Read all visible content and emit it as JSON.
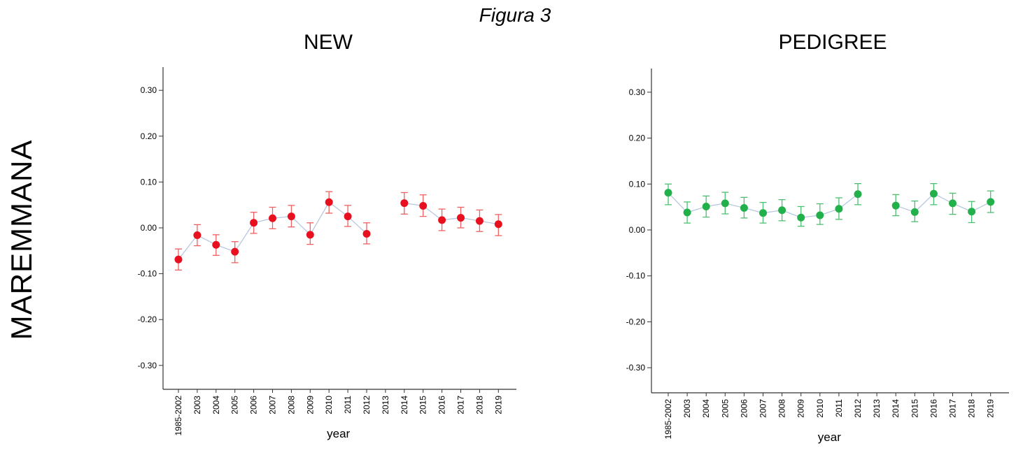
{
  "figure_title": "Figura 3",
  "row_label": "MAREMMANA",
  "chart_data": [
    {
      "type": "line",
      "title": "NEW",
      "xlabel": "year",
      "ylabel": "",
      "ylim": [
        -0.35,
        0.35
      ],
      "yticks": [
        "0.30",
        "0.20",
        "0.10",
        "0.00",
        "-0.10",
        "-0.20",
        "-0.30"
      ],
      "ytick_values": [
        0.3,
        0.2,
        0.1,
        0.0,
        -0.1,
        -0.2,
        -0.3
      ],
      "categories": [
        "1985-2002",
        "2003",
        "2004",
        "2005",
        "2006",
        "2007",
        "2008",
        "2009",
        "2010",
        "2011",
        "2012",
        "2013",
        "2014",
        "2015",
        "2016",
        "2017",
        "2018",
        "2019"
      ],
      "values": [
        -0.069,
        -0.016,
        -0.037,
        -0.052,
        0.011,
        0.021,
        0.025,
        -0.015,
        0.056,
        0.025,
        -0.013,
        null,
        0.054,
        0.048,
        0.017,
        0.022,
        0.015,
        0.008
      ],
      "err_low": [
        -0.092,
        -0.039,
        -0.06,
        -0.076,
        -0.012,
        -0.002,
        0.002,
        -0.036,
        0.032,
        0.003,
        -0.035,
        null,
        0.03,
        0.025,
        -0.006,
        0.0,
        -0.008,
        -0.017
      ],
      "err_high": [
        -0.046,
        0.007,
        -0.015,
        -0.03,
        0.034,
        0.045,
        0.049,
        0.011,
        0.079,
        0.049,
        0.011,
        null,
        0.077,
        0.072,
        0.041,
        0.045,
        0.039,
        0.029
      ],
      "marker_color": "#e8101e",
      "errorbar_color": "#f06060",
      "line_color": "#b8c8e0",
      "grid": false
    },
    {
      "type": "line",
      "title": "PEDIGREE",
      "xlabel": "year",
      "ylabel": "",
      "ylim": [
        -0.35,
        0.35
      ],
      "yticks": [
        "0.30",
        "0.20",
        "0.10",
        "0.00",
        "-0.10",
        "-0.20",
        "-0.30"
      ],
      "ytick_values": [
        0.3,
        0.2,
        0.1,
        0.0,
        -0.1,
        -0.2,
        -0.3
      ],
      "categories": [
        "1985-2002",
        "2003",
        "2004",
        "2005",
        "2006",
        "2007",
        "2008",
        "2009",
        "2010",
        "2011",
        "2012",
        "2013",
        "2014",
        "2015",
        "2016",
        "2017",
        "2018",
        "2019"
      ],
      "values": [
        0.081,
        0.038,
        0.051,
        0.058,
        0.048,
        0.037,
        0.043,
        0.027,
        0.032,
        0.046,
        0.078,
        null,
        0.053,
        0.039,
        0.079,
        0.058,
        0.04,
        0.061
      ],
      "err_low": [
        0.055,
        0.015,
        0.028,
        0.035,
        0.026,
        0.015,
        0.02,
        0.008,
        0.012,
        0.023,
        0.055,
        null,
        0.031,
        0.018,
        0.055,
        0.034,
        0.016,
        0.038
      ],
      "err_high": [
        0.1,
        0.061,
        0.074,
        0.082,
        0.071,
        0.06,
        0.066,
        0.051,
        0.057,
        0.07,
        0.101,
        null,
        0.077,
        0.063,
        0.101,
        0.08,
        0.062,
        0.085
      ],
      "marker_color": "#22b04a",
      "errorbar_color": "#4cc070",
      "line_color": "#b8c8e0",
      "grid": false
    }
  ]
}
